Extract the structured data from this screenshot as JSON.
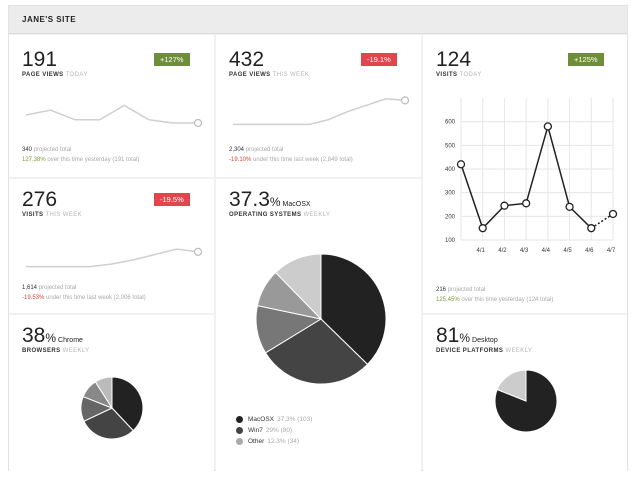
{
  "site": {
    "title": "JANE'S SITE"
  },
  "cards": {
    "page_views_today": {
      "value": "191",
      "label": "PAGE VIEWS",
      "period": "TODAY",
      "badge": "+127%",
      "projected_value": "340",
      "projected_label": "projected total",
      "compare_pct": "127.38%",
      "compare_text": "over this time yesterday (191 total)"
    },
    "page_views_week": {
      "value": "432",
      "label": "PAGE VIEWS",
      "period": "THIS WEEK",
      "badge": "-19.1%",
      "projected_value": "2,304",
      "projected_label": "projected total",
      "compare_pct": "-19.10%",
      "compare_text": "under this time last week (2,849 total)"
    },
    "visits_today": {
      "value": "124",
      "label": "VISITS",
      "period": "TODAY",
      "badge": "+125%",
      "projected_value": "216",
      "projected_label": "projected total",
      "compare_pct": "125.45%",
      "compare_text": "over this time yesterday (124 total)"
    },
    "visits_week": {
      "value": "276",
      "label": "VISITS",
      "period": "THIS WEEK",
      "badge": "-19.5%",
      "projected_value": "1,614",
      "projected_label": "projected total",
      "compare_pct": "-19.53%",
      "compare_text": "under this time last week (2,006 total)"
    },
    "os": {
      "value": "37.3",
      "pct_sign": "%",
      "suffix": "MacOSX",
      "label": "OPERATING SYSTEMS",
      "period": "WEEKLY"
    },
    "browsers": {
      "value": "38",
      "pct_sign": "%",
      "suffix": "Chrome",
      "label": "BROWSERS",
      "period": "WEEKLY"
    },
    "devices": {
      "value": "81",
      "pct_sign": "%",
      "suffix": "Desktop",
      "label": "DEVICE PLATFORMS",
      "period": "WEEKLY"
    }
  },
  "colors": {
    "up": "#6e8e3a",
    "down": "#e0474c",
    "line": "#cfcfcf",
    "dark_line": "#222222"
  },
  "chart_data": [
    {
      "type": "line",
      "id": "spark_page_views_today",
      "values": [
        50,
        65,
        35,
        35,
        80,
        35,
        25,
        25
      ],
      "ylim": [
        0,
        100
      ]
    },
    {
      "type": "line",
      "id": "spark_page_views_week",
      "values": [
        5,
        5,
        5,
        5,
        5,
        20,
        45,
        65,
        85,
        80
      ],
      "ylim": [
        0,
        100
      ]
    },
    {
      "type": "line",
      "id": "spark_visits_week",
      "values": [
        5,
        5,
        5,
        5,
        15,
        30,
        50,
        70,
        60
      ],
      "ylim": [
        0,
        100
      ]
    },
    {
      "type": "line",
      "id": "visits_daily",
      "categories": [
        "4/1",
        "4/2",
        "4/3",
        "4/4",
        "4/5",
        "4/6",
        "4/7"
      ],
      "values": [
        150,
        245,
        255,
        580,
        240,
        150,
        210
      ],
      "lead_value": 420,
      "ylim": [
        100,
        700
      ],
      "yticks": [
        100,
        200,
        300,
        400,
        500,
        600
      ],
      "grid": true
    },
    {
      "type": "pie",
      "id": "os_pie",
      "series": [
        {
          "name": "MacOSX",
          "value": 37.3,
          "pct_text": "37.3%",
          "count_text": "(103)",
          "color": "#222222"
        },
        {
          "name": "Win7",
          "value": 29.0,
          "pct_text": "29% (80)",
          "color": "#444444"
        },
        {
          "name": "",
          "value": 12.0,
          "color": "#777777"
        },
        {
          "name": "",
          "value": 9.4,
          "color": "#999999"
        },
        {
          "name": "Other",
          "value": 12.3,
          "pct_text": "12.3% (34)",
          "color": "#cccccc"
        }
      ]
    },
    {
      "type": "pie",
      "id": "browser_pie",
      "series": [
        {
          "value": 38,
          "color": "#222222"
        },
        {
          "value": 30,
          "color": "#444444"
        },
        {
          "value": 13,
          "color": "#666666"
        },
        {
          "value": 10,
          "color": "#888888"
        },
        {
          "value": 9,
          "color": "#bbbbbb"
        }
      ]
    },
    {
      "type": "pie",
      "id": "device_pie",
      "series": [
        {
          "value": 81,
          "color": "#222222"
        },
        {
          "value": 19,
          "color": "#cccccc"
        }
      ]
    }
  ]
}
